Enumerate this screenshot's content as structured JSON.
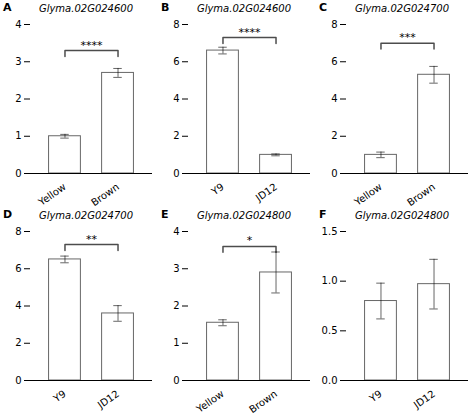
{
  "chart_data": [
    {
      "type": "bar",
      "panel_label": "A",
      "title": "Glyma.02G024600",
      "categories": [
        "Yellow",
        "Brown"
      ],
      "values": [
        1.0,
        2.7
      ],
      "errors": [
        0.05,
        0.12
      ],
      "color": "#ffffff",
      "ylim": [
        0,
        4
      ],
      "yticks": [
        0,
        1,
        2,
        3,
        4
      ],
      "grid": false,
      "annotations": [
        {
          "text": "****",
          "y": 3.3,
          "x1": "Yellow",
          "x2": "Brown"
        }
      ]
    },
    {
      "type": "bar",
      "panel_label": "B",
      "title": "Glyma.02G024600",
      "categories": [
        "Y9",
        "JD12"
      ],
      "values": [
        6.6,
        1.0
      ],
      "errors": [
        0.18,
        0.05
      ],
      "color": "#ffffff",
      "ylim": [
        0,
        8
      ],
      "yticks": [
        0,
        2,
        4,
        6,
        8
      ],
      "grid": false,
      "annotations": [
        {
          "text": "****",
          "y": 7.3,
          "x1": "Y9",
          "x2": "JD12"
        }
      ]
    },
    {
      "type": "bar",
      "panel_label": "C",
      "title": "Glyma.02G024700",
      "categories": [
        "Yellow",
        "Brown"
      ],
      "values": [
        1.0,
        5.3
      ],
      "errors": [
        0.15,
        0.45
      ],
      "color": "#ffffff",
      "ylim": [
        0,
        8
      ],
      "yticks": [
        0,
        2,
        4,
        6,
        8
      ],
      "grid": false,
      "annotations": [
        {
          "text": "***",
          "y": 7.0,
          "x1": "Yellow",
          "x2": "Brown"
        }
      ]
    },
    {
      "type": "bar",
      "panel_label": "D",
      "title": "Glyma.02G024700",
      "categories": [
        "Y9",
        "JD12"
      ],
      "values": [
        6.5,
        3.6
      ],
      "errors": [
        0.18,
        0.42
      ],
      "color": "#ffffff",
      "ylim": [
        0,
        8
      ],
      "yticks": [
        0,
        2,
        4,
        6,
        8
      ],
      "grid": false,
      "annotations": [
        {
          "text": "**",
          "y": 7.3,
          "x1": "Y9",
          "x2": "JD12"
        }
      ]
    },
    {
      "type": "bar",
      "panel_label": "E",
      "title": "Glyma.02G024800",
      "categories": [
        "Yellow",
        "Brown"
      ],
      "values": [
        1.55,
        2.9
      ],
      "errors": [
        0.08,
        0.55
      ],
      "color": "#ffffff",
      "ylim": [
        0,
        4
      ],
      "yticks": [
        0,
        1,
        2,
        3,
        4
      ],
      "grid": false,
      "annotations": [
        {
          "text": "*",
          "y": 3.6,
          "x1": "Yellow",
          "x2": "Brown"
        }
      ]
    },
    {
      "type": "bar",
      "panel_label": "F",
      "title": "Glyma.02G024800",
      "categories": [
        "Y9",
        "JD12"
      ],
      "values": [
        0.8,
        0.97
      ],
      "errors": [
        0.18,
        0.25
      ],
      "color": "#ffffff",
      "ylim": [
        0.0,
        1.5
      ],
      "yticks": [
        {
          "value": 0,
          "label": "0.0"
        },
        0.5,
        {
          "value": 1,
          "label": "1.0"
        },
        1.5
      ],
      "grid": false
    }
  ]
}
